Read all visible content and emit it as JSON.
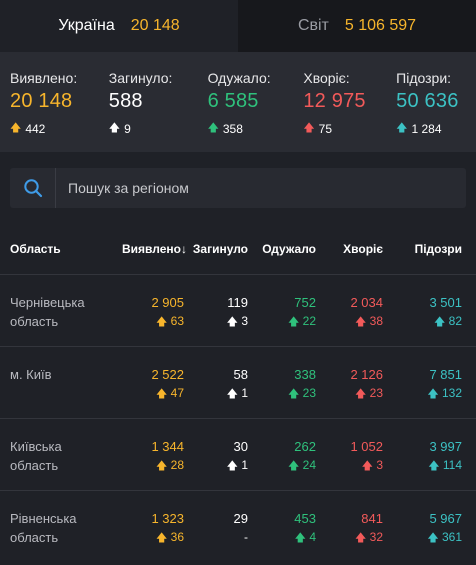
{
  "tabs": [
    {
      "label": "Україна",
      "value": "20 148"
    },
    {
      "label": "Світ",
      "value": "5 106 597"
    }
  ],
  "summary": [
    {
      "label": "Виявлено:",
      "value": "20 148",
      "delta": "442",
      "color": "#f7b52c"
    },
    {
      "label": "Загинуло:",
      "value": "588",
      "delta": "9",
      "color": "#ffffff"
    },
    {
      "label": "Одужало:",
      "value": "6 585",
      "delta": "358",
      "color": "#2fc17c"
    },
    {
      "label": "Хворіє:",
      "value": "12 975",
      "delta": "75",
      "color": "#f25a5a"
    },
    {
      "label": "Підозри:",
      "value": "50 636",
      "delta": "1 284",
      "color": "#3cc2c4"
    }
  ],
  "search": {
    "placeholder": "Пошук за регіоном"
  },
  "table": {
    "headers": [
      "Область",
      "Виявлено",
      "Загинуло",
      "Одужало",
      "Хворіє",
      "Підозри"
    ],
    "sort_indicator": "↓",
    "rows": [
      {
        "region_l1": "Чернівецька",
        "region_l2": "область",
        "confirmed": "2 905",
        "confirmed_d": "63",
        "deaths": "119",
        "deaths_d": "3",
        "recovered": "752",
        "recovered_d": "22",
        "sick": "2 034",
        "sick_d": "38",
        "suspected": "3 501",
        "suspected_d": "82"
      },
      {
        "region_l1": "м. Київ",
        "region_l2": "",
        "confirmed": "2 522",
        "confirmed_d": "47",
        "deaths": "58",
        "deaths_d": "1",
        "recovered": "338",
        "recovered_d": "23",
        "sick": "2 126",
        "sick_d": "23",
        "suspected": "7 851",
        "suspected_d": "132"
      },
      {
        "region_l1": "Київська",
        "region_l2": "область",
        "confirmed": "1 344",
        "confirmed_d": "28",
        "deaths": "30",
        "deaths_d": "1",
        "recovered": "262",
        "recovered_d": "24",
        "sick": "1 052",
        "sick_d": "3",
        "suspected": "3 997",
        "suspected_d": "114"
      },
      {
        "region_l1": "Рівненська",
        "region_l2": "область",
        "confirmed": "1 323",
        "confirmed_d": "36",
        "deaths": "29",
        "deaths_d": "-",
        "recovered": "453",
        "recovered_d": "4",
        "sick": "841",
        "sick_d": "32",
        "suspected": "5 967",
        "suspected_d": "361"
      }
    ]
  }
}
